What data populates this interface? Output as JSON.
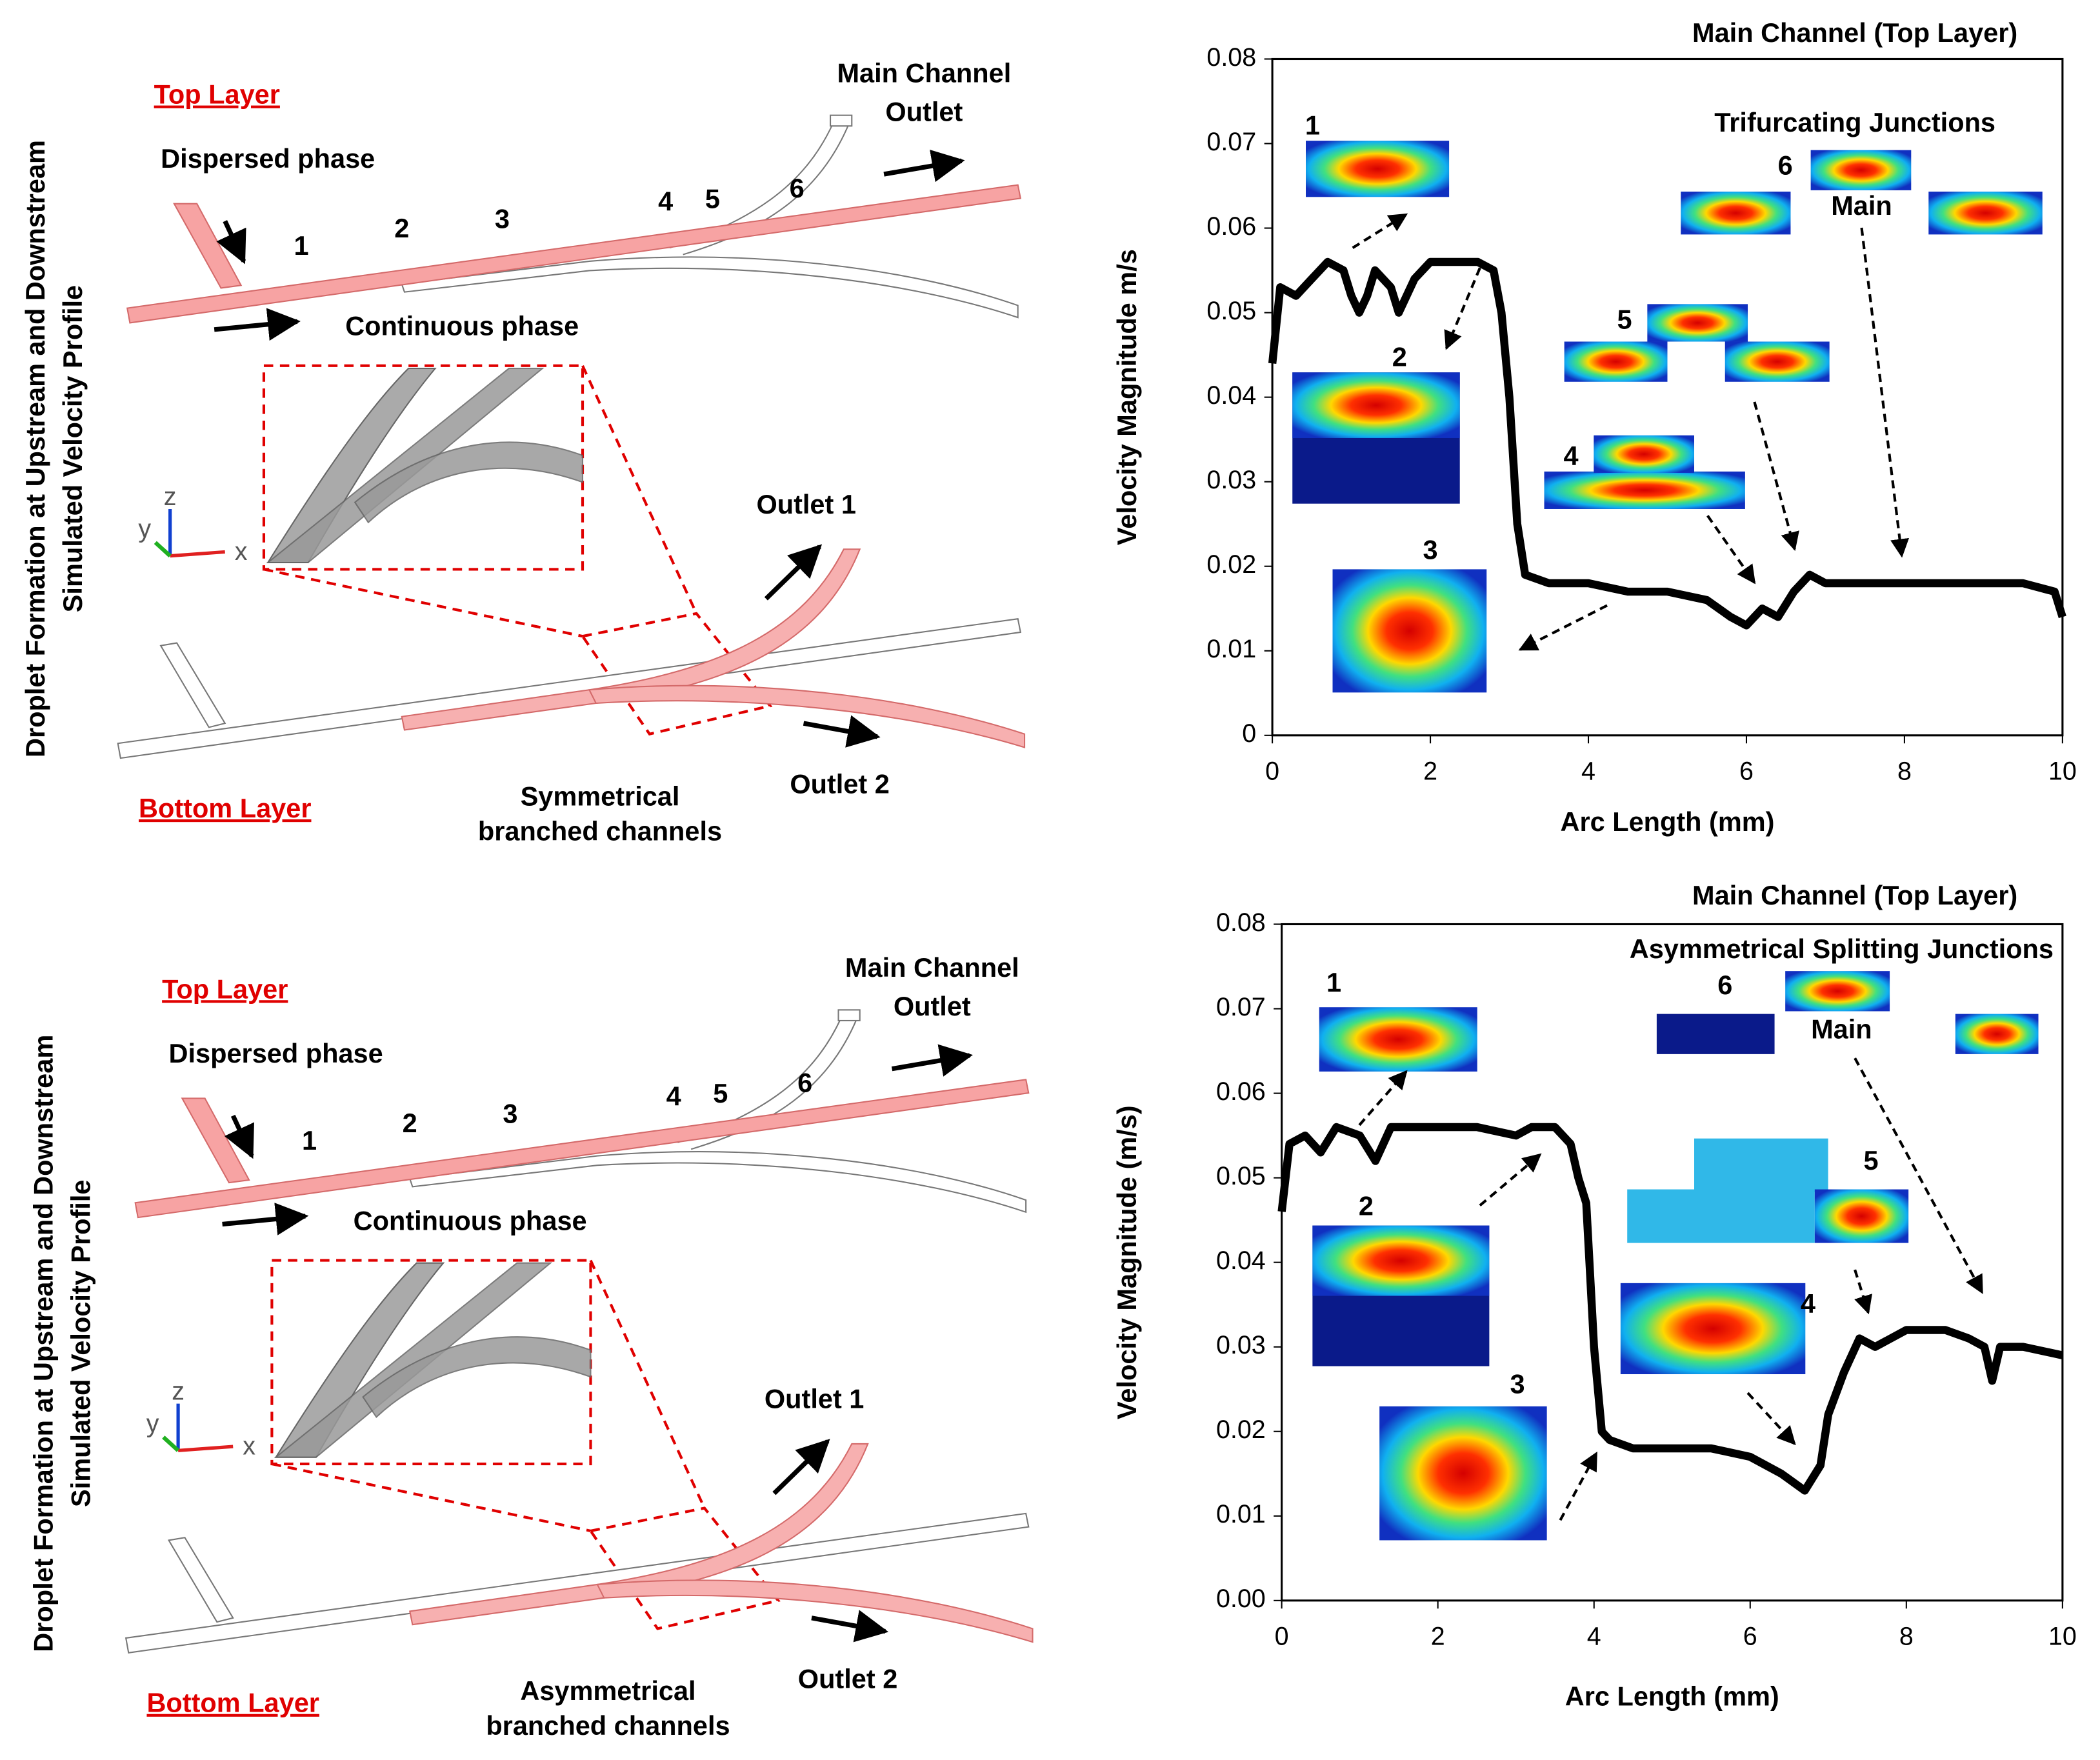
{
  "chart_data": [
    {
      "type": "line",
      "title": "Main Channel (Top Layer)",
      "xlabel": "Arc Length (mm)",
      "ylabel": "Velocity Magnitude m/s",
      "x": [
        0,
        0.1,
        0.3,
        0.5,
        0.7,
        0.9,
        1.0,
        1.1,
        1.2,
        1.3,
        1.5,
        1.6,
        1.8,
        2.0,
        2.3,
        2.6,
        2.8,
        2.9,
        3.0,
        3.1,
        3.2,
        3.5,
        4,
        4.5,
        5,
        5.5,
        5.8,
        6.0,
        6.2,
        6.4,
        6.6,
        6.8,
        7,
        7.5,
        8,
        8.5,
        9,
        9.5,
        9.9,
        10
      ],
      "values": [
        0.044,
        0.053,
        0.052,
        0.054,
        0.056,
        0.055,
        0.052,
        0.05,
        0.052,
        0.055,
        0.053,
        0.05,
        0.054,
        0.056,
        0.056,
        0.056,
        0.055,
        0.05,
        0.04,
        0.025,
        0.019,
        0.018,
        0.018,
        0.017,
        0.017,
        0.016,
        0.014,
        0.013,
        0.015,
        0.014,
        0.017,
        0.019,
        0.018,
        0.018,
        0.018,
        0.018,
        0.018,
        0.018,
        0.017,
        0.014
      ],
      "color": "#000000",
      "xlim": [
        0,
        10
      ],
      "xticks": [
        0,
        2,
        4,
        6,
        8,
        10
      ],
      "ylim": [
        0,
        0.08
      ],
      "yticks": [
        0,
        0.01,
        0.02,
        0.03,
        0.04,
        0.05,
        0.06,
        0.07,
        0.08
      ],
      "annotations": [
        "1",
        "2",
        "3",
        "4",
        "5",
        "6",
        "Trifurcating Junctions",
        "Main"
      ]
    },
    {
      "type": "line",
      "title": "Main Channel (Top Layer)",
      "xlabel": "Arc Length (mm)",
      "ylabel": "Velocity Magnitude (m/s)",
      "x": [
        0,
        0.1,
        0.3,
        0.5,
        0.7,
        1.0,
        1.2,
        1.4,
        2,
        2.5,
        3,
        3.2,
        3.5,
        3.7,
        3.8,
        3.9,
        4.0,
        4.1,
        4.2,
        4.5,
        5,
        5.5,
        6,
        6.4,
        6.7,
        6.9,
        7.0,
        7.2,
        7.4,
        7.6,
        8,
        8.5,
        8.8,
        9,
        9.1,
        9.2,
        9.5,
        10
      ],
      "values": [
        0.046,
        0.054,
        0.055,
        0.053,
        0.056,
        0.055,
        0.052,
        0.056,
        0.056,
        0.056,
        0.055,
        0.056,
        0.056,
        0.054,
        0.05,
        0.047,
        0.03,
        0.02,
        0.019,
        0.018,
        0.018,
        0.018,
        0.017,
        0.015,
        0.013,
        0.016,
        0.022,
        0.027,
        0.031,
        0.03,
        0.032,
        0.032,
        0.031,
        0.03,
        0.026,
        0.03,
        0.03,
        0.029
      ],
      "color": "#000000",
      "xlim": [
        0,
        10
      ],
      "xticks": [
        0,
        2,
        4,
        6,
        8,
        10
      ],
      "ylim": [
        0,
        0.08
      ],
      "yticks": [
        {
          "value": 0,
          "label": "0.00"
        },
        0.01,
        0.02,
        0.03,
        0.04,
        0.05,
        0.06,
        0.07,
        0.08
      ],
      "annotations": [
        "1",
        "2",
        "3",
        "4",
        "5",
        "6",
        "Asymmetrical Splitting Junctions",
        "Main"
      ]
    }
  ],
  "diagrams": [
    {
      "top_layer": "Top Layer",
      "dispersed": "Dispersed phase",
      "continuous": "Continuous phase",
      "main_outlet": [
        "Main Channel",
        "Outlet"
      ],
      "junctions": [
        "1",
        "2",
        "3",
        "4",
        "5",
        "6"
      ],
      "outlet1": "Outlet 1",
      "outlet2": "Outlet 2",
      "bottom_layer": "Bottom Layer",
      "branch_label": [
        "Symmetrical",
        "branched channels"
      ],
      "side_label": [
        "Droplet Formation at Upstream and Downstream",
        "Simulated Velocity Profile"
      ],
      "axes": [
        "x",
        "y",
        "z"
      ]
    },
    {
      "top_layer": "Top Layer",
      "dispersed": "Dispersed phase",
      "continuous": "Continuous phase",
      "main_outlet": [
        "Main Channel",
        "Outlet"
      ],
      "junctions": [
        "1",
        "2",
        "3",
        "4",
        "5",
        "6"
      ],
      "outlet1": "Outlet 1",
      "outlet2": "Outlet 2",
      "bottom_layer": "Bottom Layer",
      "branch_label": [
        "Asymmetrical",
        "branched channels"
      ],
      "side_label": [
        "Droplet Formation at Upstream and Downstream",
        "Simulated Velocity Profile"
      ],
      "axes": [
        "x",
        "y",
        "z"
      ]
    }
  ]
}
